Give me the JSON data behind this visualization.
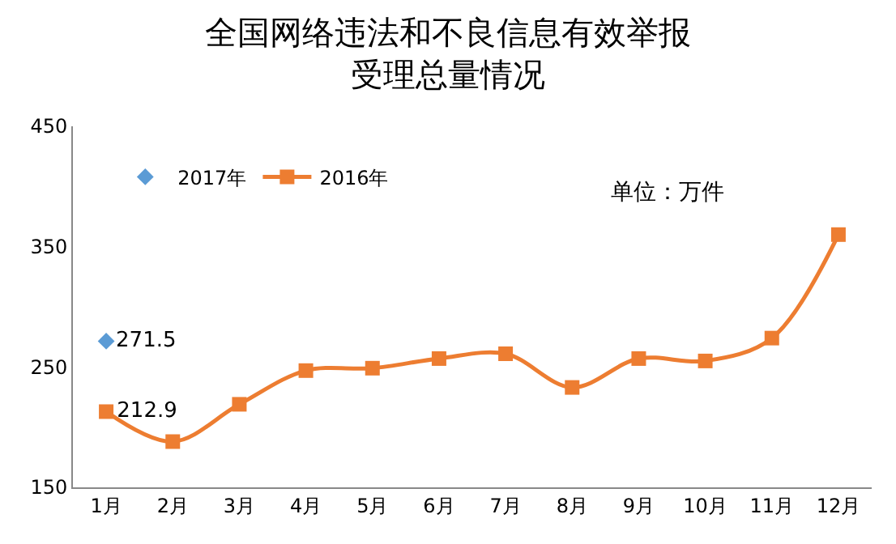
{
  "chart_data": {
    "type": "line",
    "title": "全国网络违法和不良信息有效举报受理总量情况",
    "categories": [
      "1月",
      "2月",
      "3月",
      "4月",
      "5月",
      "6月",
      "7月",
      "8月",
      "9月",
      "10月",
      "11月",
      "12月"
    ],
    "series": [
      {
        "name": "2017年",
        "color": "#5b9bd5",
        "marker": "diamond",
        "type": "scatter",
        "values": [
          271.5,
          null,
          null,
          null,
          null,
          null,
          null,
          null,
          null,
          null,
          null,
          null
        ],
        "value_labels": [
          "271.5",
          null,
          null,
          null,
          null,
          null,
          null,
          null,
          null,
          null,
          null,
          null
        ]
      },
      {
        "name": "2016年",
        "color": "#ed7d31",
        "marker": "square",
        "values": [
          212.9,
          188,
          219,
          247,
          249,
          257,
          261,
          233,
          257,
          255,
          274,
          360
        ],
        "value_labels": [
          "212.9",
          null,
          null,
          null,
          null,
          null,
          null,
          null,
          null,
          null,
          null,
          null
        ]
      }
    ],
    "ylim": [
      150,
      450
    ],
    "yticks": [
      150,
      250,
      350,
      450
    ],
    "legend": "top left",
    "annotations": [
      "单位：万件"
    ]
  }
}
